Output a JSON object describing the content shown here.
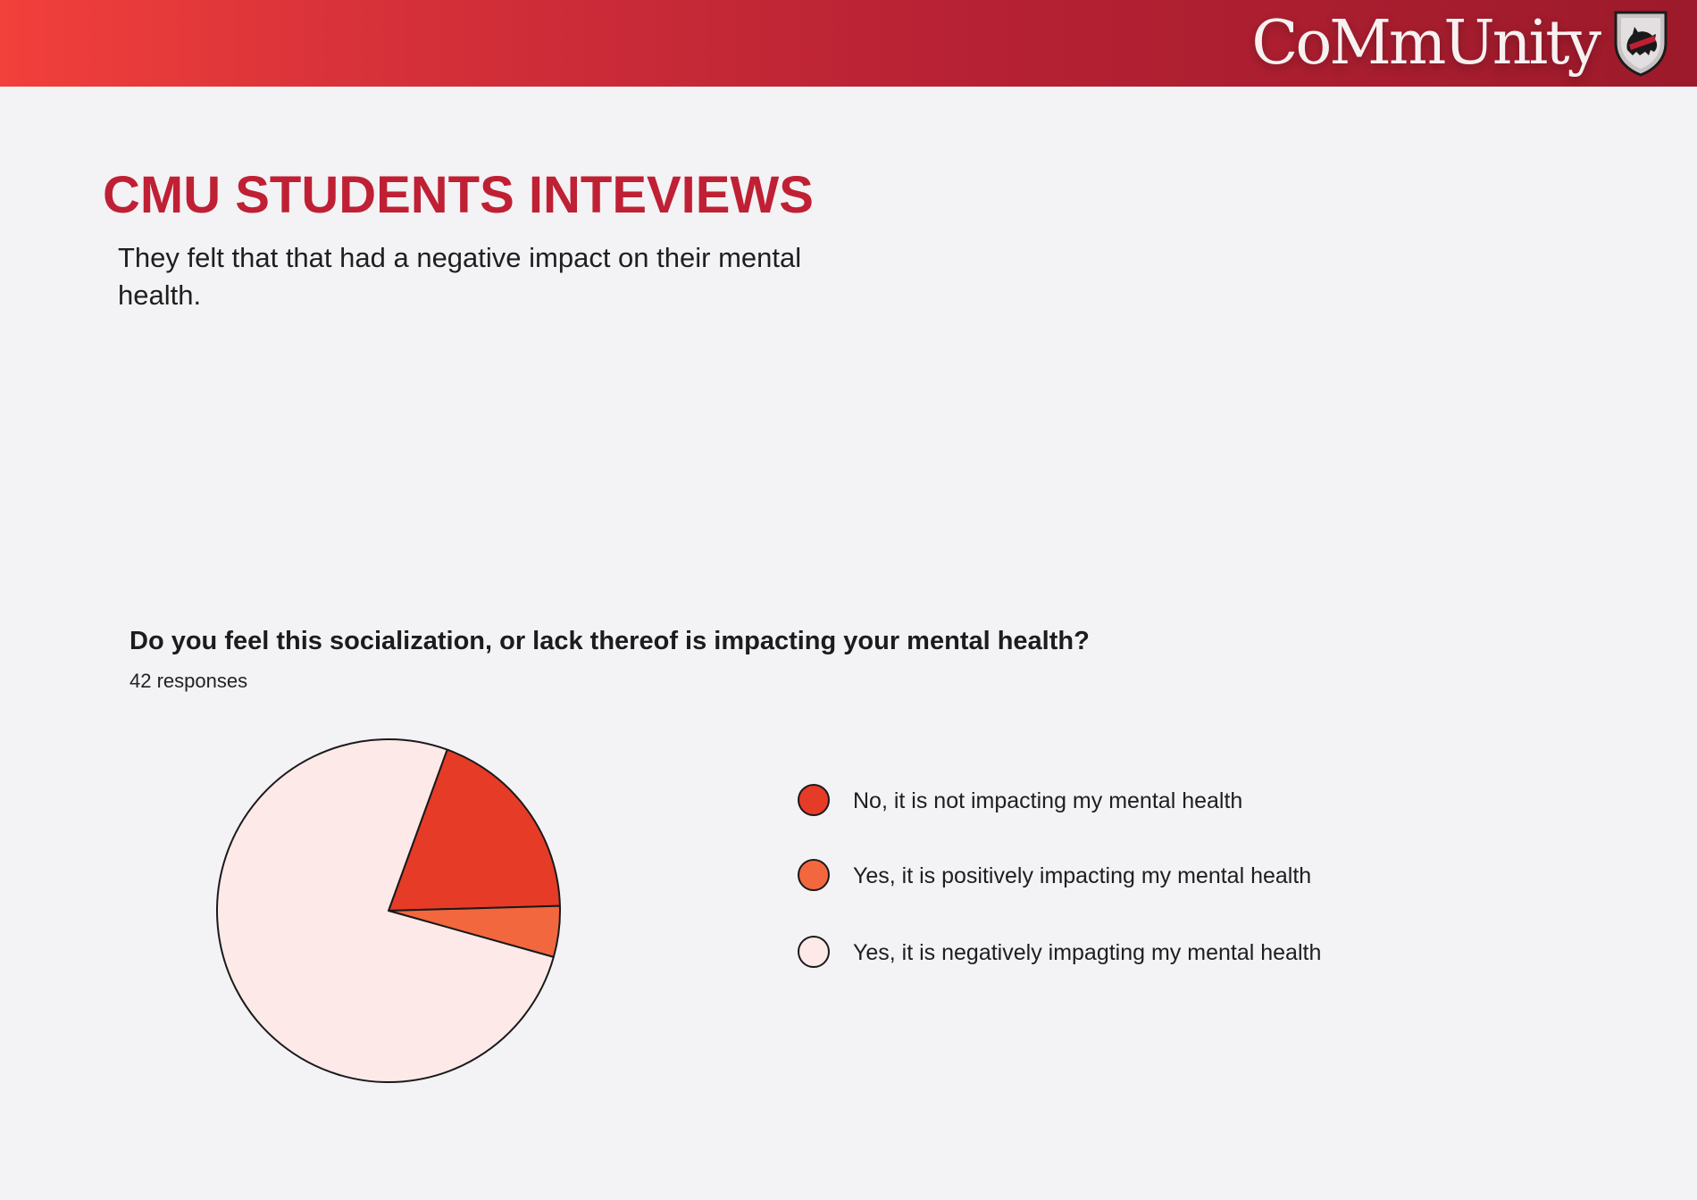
{
  "header": {
    "brand": "CoMmUnity"
  },
  "slide": {
    "title": "CMU STUDENTS INTEVIEWS",
    "subtitle": "They felt that that had a negative impact on their mental health."
  },
  "colors": {
    "accent": "#bf2034",
    "header_start": "#f2403b",
    "header_end": "#9c1a2b"
  },
  "chart_data": {
    "type": "pie",
    "title": "Do you feel this socialization, or lack thereof is impacting your mental health?",
    "subtitle": "42 responses",
    "legend_position": "right",
    "series": [
      {
        "name": "No, it is not impacting my mental health",
        "value": 19.0,
        "color": "#e63b27"
      },
      {
        "name": "Yes, it is positively impacting my mental health",
        "value": 4.8,
        "color": "#f3673e"
      },
      {
        "name": "Yes, it is negatively impagting my mental health",
        "value": 76.2,
        "color": "#fce9e8"
      }
    ]
  }
}
